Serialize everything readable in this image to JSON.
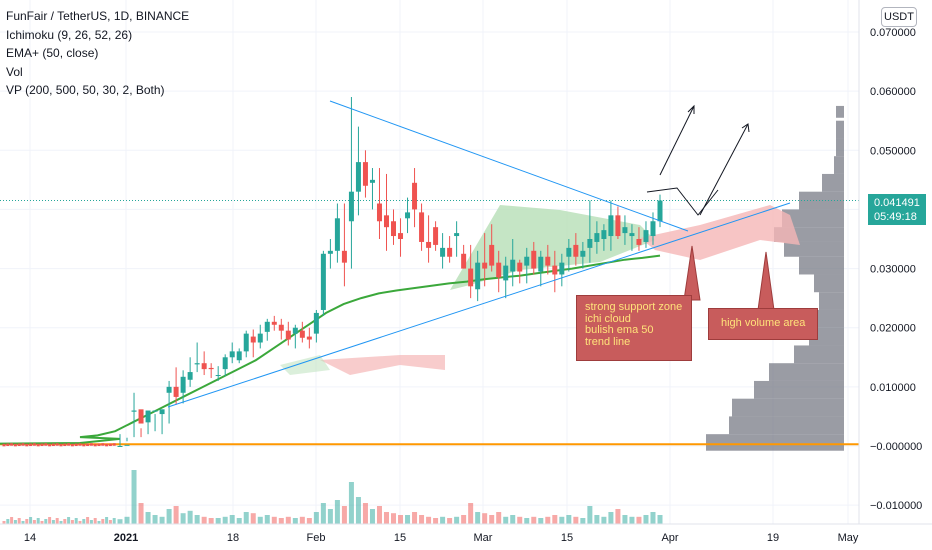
{
  "legend": {
    "symbol": "FunFair / TetherUS, 1D, BINANCE",
    "ichimoku": "Ichimoku (9, 26, 52, 26)",
    "ema": "EMA+ (50, close)",
    "vol": "Vol",
    "vp": "VP (200, 500, 50, 30, 2, Both)"
  },
  "currency": "USDT",
  "last_price": "0.041491",
  "countdown": "05:49:18",
  "annotations": {
    "support_lines": [
      "strong support zone",
      "ichi cloud",
      "bulish ema 50",
      "trend line"
    ],
    "volume": "high volume area"
  },
  "colors": {
    "up": "#26a69a",
    "down": "#ef5350",
    "ema": "#3ba83b",
    "trend": "#2196f3",
    "cloud_bull": "#b7dfb7",
    "cloud_bear": "#f5b7b7",
    "vp": "#787b86",
    "orange": "#ff9800",
    "note": "#c85c5c"
  },
  "chart_data": {
    "type": "candlestick",
    "title": "FunFair / TetherUS, 1D, BINANCE",
    "yaxis_ticks": [
      "0.070000",
      "0.060000",
      "0.050000",
      "0.040000",
      "0.030000",
      "0.020000",
      "0.010000",
      "−0.000000",
      "−0.010000"
    ],
    "ylim": [
      -0.012,
      0.075
    ],
    "xaxis_ticks": [
      {
        "label": "14",
        "bold": false,
        "x": 14
      },
      {
        "label": "2021",
        "bold": true,
        "x": 32
      },
      {
        "label": "18",
        "bold": false,
        "x": 49
      },
      {
        "label": "Feb",
        "bold": false,
        "x": 63
      },
      {
        "label": "15",
        "bold": false,
        "x": 77
      },
      {
        "label": "Mar",
        "bold": false,
        "x": 91
      },
      {
        "label": "15",
        "bold": false,
        "x": 105
      },
      {
        "label": "Apr",
        "bold": false,
        "x": 122
      },
      {
        "label": "19",
        "bold": false,
        "x": 140
      },
      {
        "label": "May",
        "bold": false,
        "x": 152
      }
    ],
    "candles_ohlc": [
      [
        0.0,
        0.002,
        0.0,
        0.0
      ],
      [
        0.0002,
        0.0014,
        0.0008,
        0.0002
      ],
      [
        0.0058,
        0.0015,
        0.009,
        0.006
      ],
      [
        0.0062,
        0.0015,
        0.003,
        0.0038
      ],
      [
        0.004,
        0.002,
        0.0055,
        0.006
      ],
      [
        0.0058,
        0.0025,
        0.0054,
        0.006
      ],
      [
        0.0054,
        0.002,
        0.0062,
        0.0062
      ],
      [
        0.009,
        0.0038,
        0.011,
        0.01
      ],
      [
        0.01,
        0.007,
        0.0133,
        0.0083
      ],
      [
        0.009,
        0.0072,
        0.0128,
        0.0117
      ],
      [
        0.0112,
        0.01,
        0.015,
        0.0125
      ],
      [
        0.0138,
        0.0125,
        0.0175,
        0.014
      ],
      [
        0.014,
        0.012,
        0.016,
        0.013
      ],
      [
        0.0132,
        0.0115,
        0.014,
        0.013
      ],
      [
        0.012,
        0.011,
        0.0135,
        0.012
      ],
      [
        0.013,
        0.0118,
        0.0155,
        0.015
      ],
      [
        0.015,
        0.014,
        0.0175,
        0.016
      ],
      [
        0.0145,
        0.014,
        0.0165,
        0.016
      ],
      [
        0.016,
        0.015,
        0.0195,
        0.019
      ],
      [
        0.0185,
        0.015,
        0.0197,
        0.0175
      ],
      [
        0.0175,
        0.0165,
        0.0205,
        0.019
      ],
      [
        0.0193,
        0.0178,
        0.0215,
        0.021
      ],
      [
        0.021,
        0.0195,
        0.022,
        0.0205
      ],
      [
        0.0205,
        0.018,
        0.0215,
        0.0195
      ],
      [
        0.0195,
        0.017,
        0.021,
        0.018
      ],
      [
        0.019,
        0.0165,
        0.0205,
        0.02
      ],
      [
        0.0195,
        0.0175,
        0.021,
        0.0183
      ],
      [
        0.0185,
        0.0165,
        0.02,
        0.018
      ],
      [
        0.019,
        0.0175,
        0.023,
        0.0225
      ],
      [
        0.023,
        0.022,
        0.033,
        0.0325
      ],
      [
        0.0325,
        0.03,
        0.035,
        0.033
      ],
      [
        0.033,
        0.031,
        0.041,
        0.0385
      ],
      [
        0.033,
        0.027,
        0.041,
        0.031
      ],
      [
        0.038,
        0.03,
        0.059,
        0.043
      ],
      [
        0.043,
        0.039,
        0.054,
        0.048
      ],
      [
        0.048,
        0.042,
        0.05,
        0.044
      ],
      [
        0.0445,
        0.04,
        0.047,
        0.045
      ],
      [
        0.041,
        0.035,
        0.047,
        0.038
      ],
      [
        0.039,
        0.033,
        0.046,
        0.037
      ],
      [
        0.038,
        0.034,
        0.04,
        0.0355
      ],
      [
        0.036,
        0.032,
        0.0385,
        0.035
      ],
      [
        0.0385,
        0.036,
        0.042,
        0.0395
      ],
      [
        0.0445,
        0.037,
        0.047,
        0.04
      ],
      [
        0.0395,
        0.033,
        0.041,
        0.0345
      ],
      [
        0.0345,
        0.031,
        0.039,
        0.0335
      ],
      [
        0.037,
        0.033,
        0.038,
        0.034
      ],
      [
        0.032,
        0.03,
        0.036,
        0.0335
      ],
      [
        0.0335,
        0.031,
        0.0355,
        0.032
      ],
      [
        0.0355,
        0.032,
        0.038,
        0.036
      ],
      [
        0.0325,
        0.03,
        0.034,
        0.03
      ],
      [
        0.03,
        0.025,
        0.034,
        0.027
      ],
      [
        0.0265,
        0.0245,
        0.033,
        0.031
      ],
      [
        0.031,
        0.027,
        0.036,
        0.03
      ],
      [
        0.034,
        0.0295,
        0.0375,
        0.0305
      ],
      [
        0.031,
        0.026,
        0.033,
        0.0285
      ],
      [
        0.028,
        0.025,
        0.032,
        0.0305
      ],
      [
        0.0295,
        0.027,
        0.035,
        0.0315
      ],
      [
        0.031,
        0.0275,
        0.0315,
        0.0295
      ],
      [
        0.0305,
        0.0275,
        0.0335,
        0.032
      ],
      [
        0.033,
        0.029,
        0.0345,
        0.03
      ],
      [
        0.0295,
        0.027,
        0.033,
        0.032
      ],
      [
        0.032,
        0.029,
        0.034,
        0.0305
      ],
      [
        0.0305,
        0.026,
        0.033,
        0.029
      ],
      [
        0.029,
        0.027,
        0.0325,
        0.031
      ],
      [
        0.032,
        0.0295,
        0.035,
        0.0335
      ],
      [
        0.034,
        0.0305,
        0.036,
        0.032
      ],
      [
        0.032,
        0.03,
        0.0345,
        0.033
      ],
      [
        0.0335,
        0.031,
        0.0415,
        0.035
      ],
      [
        0.0345,
        0.0325,
        0.038,
        0.036
      ],
      [
        0.035,
        0.033,
        0.0375,
        0.0365
      ],
      [
        0.0355,
        0.033,
        0.0415,
        0.039
      ],
      [
        0.039,
        0.035,
        0.0405,
        0.0355
      ],
      [
        0.036,
        0.034,
        0.039,
        0.037
      ],
      [
        0.0355,
        0.033,
        0.0375,
        0.036
      ],
      [
        0.035,
        0.033,
        0.037,
        0.034
      ],
      [
        0.0345,
        0.0335,
        0.038,
        0.0365
      ],
      [
        0.0355,
        0.034,
        0.0395,
        0.038
      ],
      [
        0.038,
        0.037,
        0.0425,
        0.0415
      ]
    ],
    "ema50": [
      [
        0.0015
      ],
      [
        0.0018
      ],
      [
        0.0025
      ],
      [
        0.004
      ],
      [
        0.0055
      ],
      [
        0.007
      ],
      [
        0.0085
      ],
      [
        0.01
      ],
      [
        0.0115
      ],
      [
        0.013
      ],
      [
        0.0145
      ],
      [
        0.0165
      ],
      [
        0.0185
      ],
      [
        0.0205
      ],
      [
        0.0225
      ],
      [
        0.024
      ],
      [
        0.025
      ],
      [
        0.0258
      ],
      [
        0.0263
      ],
      [
        0.0267
      ],
      [
        0.0271
      ],
      [
        0.0275
      ],
      [
        0.0278
      ],
      [
        0.0282
      ],
      [
        0.0285
      ],
      [
        0.0288
      ],
      [
        0.0292
      ],
      [
        0.0296
      ],
      [
        0.03
      ],
      [
        0.0305
      ],
      [
        0.031
      ],
      [
        0.0315
      ],
      [
        0.0318
      ],
      [
        0.0322
      ]
    ],
    "volume_profile_note": "horizontal volume-by-price histogram on right, peak near 0.030-0.040 and 0.000"
  }
}
